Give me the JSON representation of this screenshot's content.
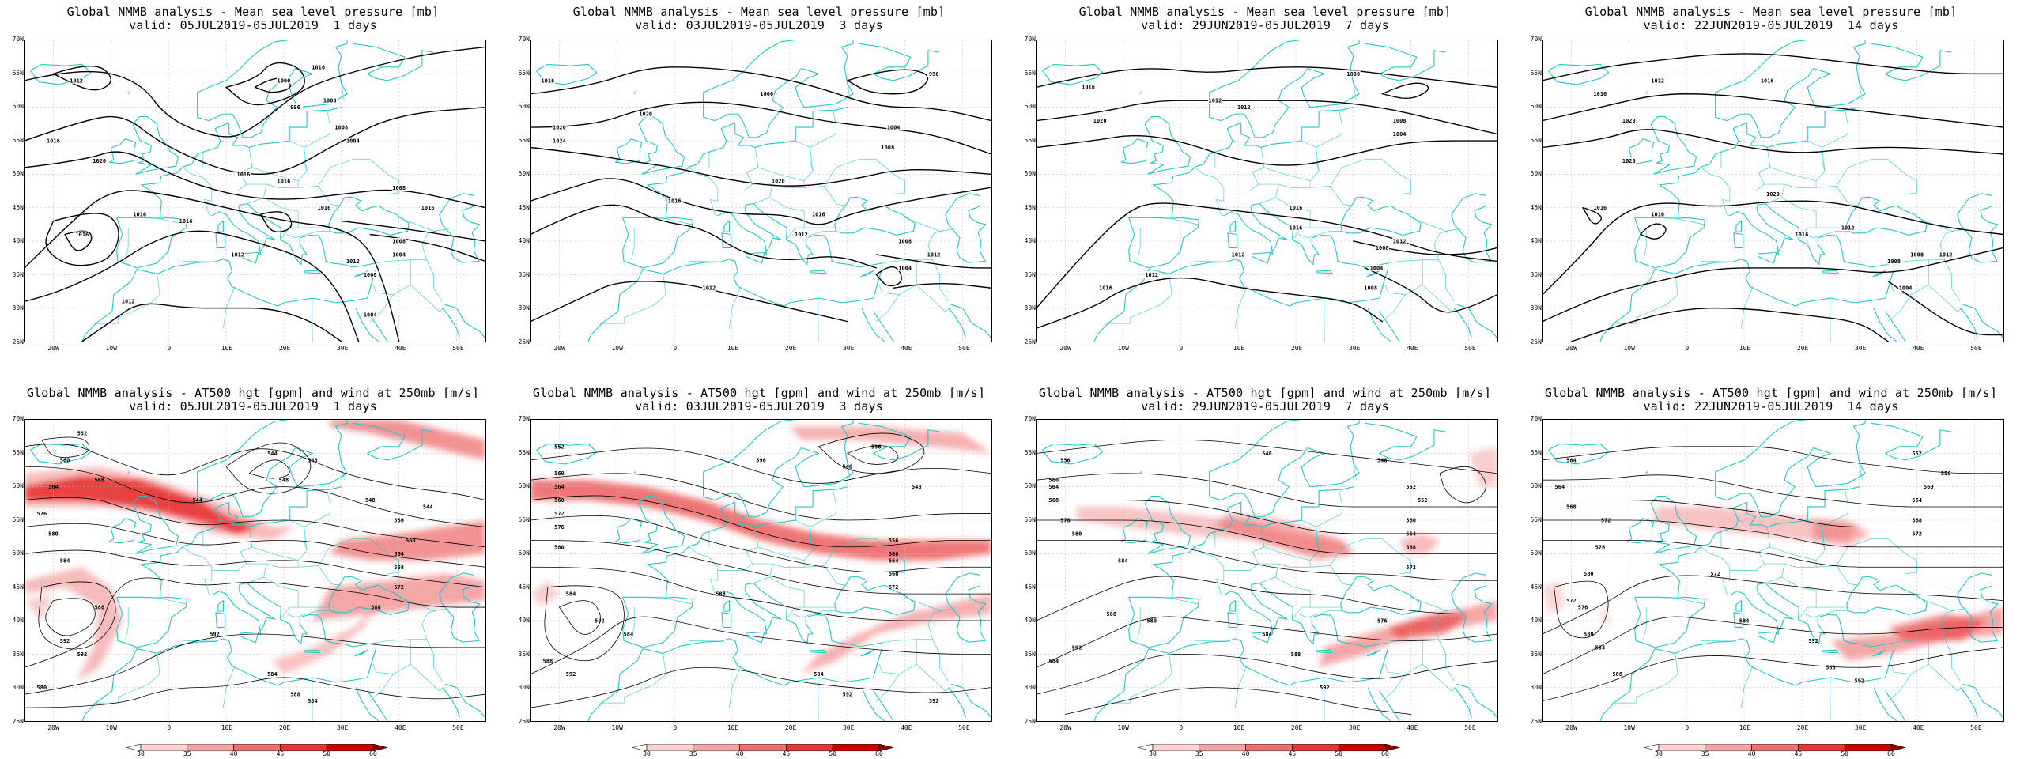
{
  "panels": [
    {
      "title": "Global NMMB analysis - Mean sea level pressure [mb]",
      "valid": "valid: 05JUL2019-05JUL2019  1 days",
      "kind": "mslp"
    },
    {
      "title": "Global NMMB analysis - Mean sea level pressure [mb]",
      "valid": "valid: 03JUL2019-05JUL2019  3 days",
      "kind": "mslp"
    },
    {
      "title": "Global NMMB analysis - Mean sea level pressure [mb]",
      "valid": "valid: 29JUN2019-05JUL2019  7 days",
      "kind": "mslp"
    },
    {
      "title": "Global NMMB analysis - Mean sea level pressure [mb]",
      "valid": "valid: 22JUN2019-05JUL2019  14 days",
      "kind": "mslp"
    },
    {
      "title": "Global NMMB analysis - AT500 hgt [gpm] and wind at 250mb [m/s]",
      "valid": "valid: 05JUL2019-05JUL2019  1 days",
      "kind": "z500"
    },
    {
      "title": "Global NMMB analysis - AT500 hgt [gpm] and wind at 250mb [m/s]",
      "valid": "valid: 03JUL2019-05JUL2019  3 days",
      "kind": "z500"
    },
    {
      "title": "Global NMMB analysis - AT500 hgt [gpm] and wind at 250mb [m/s]",
      "valid": "valid: 29JUN2019-05JUL2019  7 days",
      "kind": "z500"
    },
    {
      "title": "Global NMMB analysis - AT500 hgt [gpm] and wind at 250mb [m/s]",
      "valid": "valid: 22JUN2019-05JUL2019  14 days",
      "kind": "z500"
    }
  ],
  "lat_labels": [
    "70N",
    "65N",
    "60N",
    "55N",
    "50N",
    "45N",
    "40N",
    "35N",
    "30N",
    "25N"
  ],
  "lon_labels": [
    "20W",
    "10W",
    "0",
    "10E",
    "20E",
    "30E",
    "40E",
    "50E"
  ],
  "colorbar": {
    "labels": [
      "30",
      "35",
      "40",
      "45",
      "50",
      "60"
    ],
    "colors": [
      "#ffffff",
      "#fbd3d3",
      "#f6a5a5",
      "#ef6e6e",
      "#e63333",
      "#c90000",
      "#8c0000"
    ]
  },
  "colors": {
    "coast": "#22c6cc",
    "contour": "#000000",
    "grid": "#bdbdbd",
    "jet": "#e83a3a"
  },
  "mslp_labels": [
    "1012",
    "1016",
    "1020",
    "1024",
    "1008",
    "1004",
    "1000",
    "996"
  ],
  "z500_labels": [
    "552",
    "556",
    "560",
    "564",
    "568",
    "572",
    "576",
    "580",
    "584",
    "588",
    "592",
    "596",
    "544",
    "548"
  ]
}
